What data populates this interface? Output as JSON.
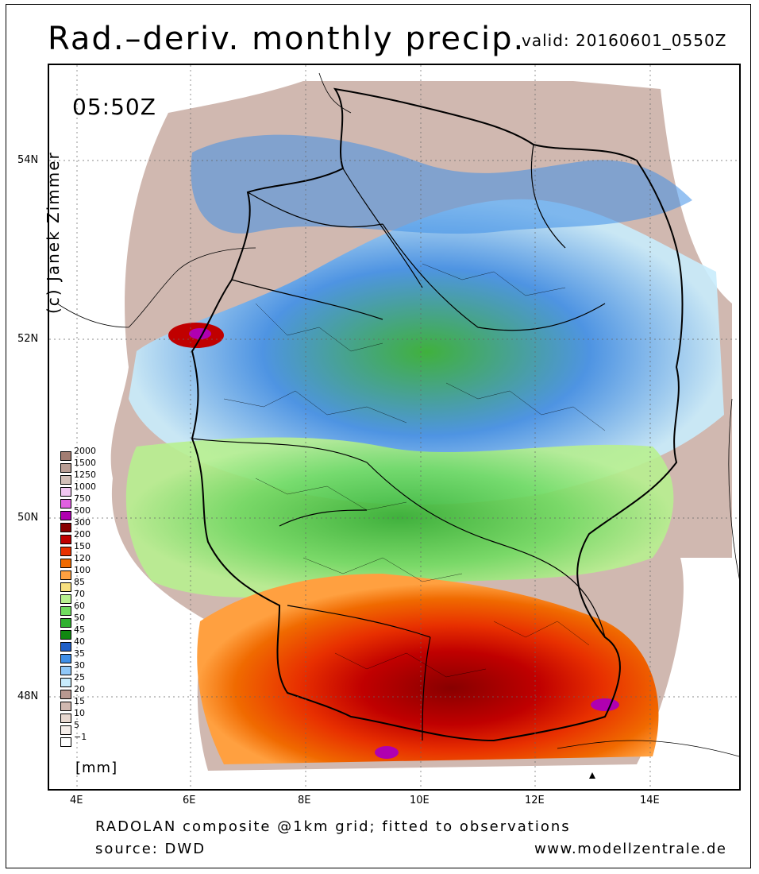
{
  "header": {
    "title": "Rad.–deriv. monthly precip.",
    "valid": "valid: 20160601_0550Z"
  },
  "map": {
    "time_label": "05:50Z",
    "credit": "(c) Janek Zimmer",
    "lat_labels": [
      "54N",
      "52N",
      "50N",
      "48N"
    ],
    "lon_labels": [
      "4E",
      "6E",
      "8E",
      "10E",
      "12E",
      "14E"
    ]
  },
  "legend": {
    "unit": "[mm]",
    "levels": [
      {
        "label": "2000",
        "color": "#a27d72"
      },
      {
        "label": "1500",
        "color": "#b99e95"
      },
      {
        "label": "1250",
        "color": "#d2bfb8"
      },
      {
        "label": "1000",
        "color": "#f1c6f1"
      },
      {
        "label": "750",
        "color": "#e060e0"
      },
      {
        "label": "500",
        "color": "#b000b0"
      },
      {
        "label": "300",
        "color": "#880000"
      },
      {
        "label": "200",
        "color": "#c00000"
      },
      {
        "label": "150",
        "color": "#e83000"
      },
      {
        "label": "120",
        "color": "#f06a00"
      },
      {
        "label": "100",
        "color": "#ffa040"
      },
      {
        "label": "85",
        "color": "#f8e080"
      },
      {
        "label": "70",
        "color": "#b8f090"
      },
      {
        "label": "60",
        "color": "#70dc60"
      },
      {
        "label": "50",
        "color": "#30b030"
      },
      {
        "label": "45",
        "color": "#108810"
      },
      {
        "label": "40",
        "color": "#2060c8"
      },
      {
        "label": "35",
        "color": "#4090e8"
      },
      {
        "label": "30",
        "color": "#90c8f8"
      },
      {
        "label": "25",
        "color": "#c8ecfc"
      },
      {
        "label": "20",
        "color": "#b89890"
      },
      {
        "label": "15",
        "color": "#d0b8b0"
      },
      {
        "label": "10",
        "color": "#e8d8d0"
      },
      {
        "label": "5",
        "color": "#f6eeea"
      },
      {
        "label": "−1",
        "color": "#ffffff"
      }
    ]
  },
  "footer": {
    "line1": "RADOLAN composite @1km grid; fitted to observations",
    "line2": "source: DWD",
    "website": "www.modellzentrale.de"
  }
}
